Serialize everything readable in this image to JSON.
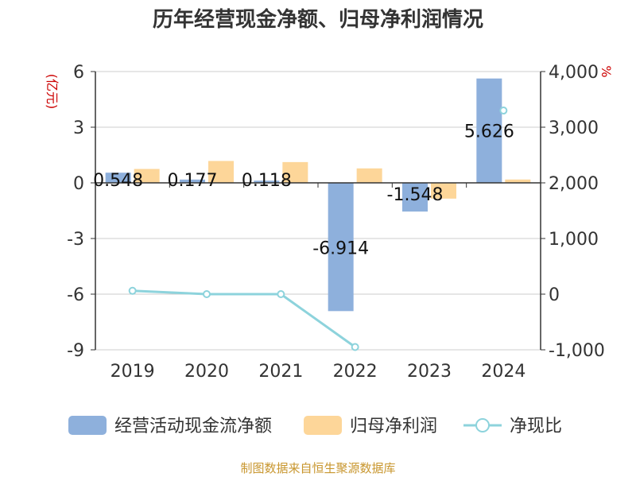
{
  "chart_data": {
    "type": "bar",
    "title": "历年经营现金净额、归母净利润情况",
    "categories": [
      "2019",
      "2020",
      "2021",
      "2022",
      "2023",
      "2024"
    ],
    "y_left": {
      "unit": "(亿元)",
      "ylim": [
        -9,
        6
      ],
      "ticks": [
        6,
        3,
        0,
        -3,
        -6,
        -9
      ],
      "tick_labels": [
        "6",
        "3",
        "0",
        "-3",
        "-6",
        "-9"
      ]
    },
    "y_right": {
      "unit": "%",
      "ylim": [
        -1000,
        4000
      ],
      "ticks": [
        4000,
        3000,
        2000,
        1000,
        0,
        -1000
      ],
      "tick_labels": [
        "4,000",
        "3,000",
        "2,000",
        "1,000",
        "0",
        "-1,000"
      ]
    },
    "series": [
      {
        "name": "经营活动现金流净额",
        "axis": "left",
        "type": "bar",
        "color": "#8eb0dc",
        "values": [
          0.548,
          0.177,
          0.118,
          -6.914,
          -1.548,
          5.626
        ],
        "labels": [
          "0.548",
          "0.177",
          "0.118",
          "-6.914",
          "-1.548",
          "5.626"
        ]
      },
      {
        "name": "归母净利润",
        "axis": "left",
        "type": "bar",
        "color": "#fdd699",
        "values": [
          0.75,
          1.18,
          1.12,
          0.78,
          -0.85,
          0.18
        ]
      },
      {
        "name": "净现比",
        "axis": "right",
        "type": "line",
        "color": "#8dd3dc",
        "values": [
          60,
          0,
          0,
          -950,
          null,
          3300
        ]
      }
    ],
    "source": "制图数据来自恒生聚源数据库"
  }
}
